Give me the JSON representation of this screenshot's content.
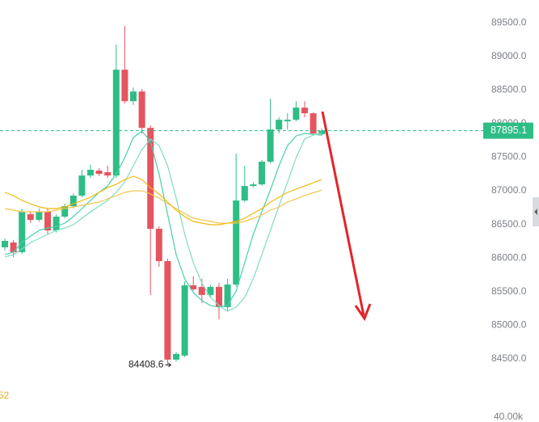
{
  "chart_data": {
    "type": "candlestick",
    "up_color": "#2ebd85",
    "down_color": "#e5545f",
    "ylim": [
      83800,
      89840
    ],
    "yticks": [
      {
        "value": 89500,
        "label": "89500.0"
      },
      {
        "value": 89000,
        "label": "89000.0"
      },
      {
        "value": 88500,
        "label": "88500.0"
      },
      {
        "value": 88000,
        "label": "88000.0"
      },
      {
        "value": 87500,
        "label": "87500.0"
      },
      {
        "value": 87000,
        "label": "87000.0"
      },
      {
        "value": 86500,
        "label": "86500.0"
      },
      {
        "value": 86000,
        "label": "86000.0"
      },
      {
        "value": 85500,
        "label": "85500.0"
      },
      {
        "value": 85000,
        "label": "85000.0"
      },
      {
        "value": 84500,
        "label": "84500.0"
      }
    ],
    "volume_tick": "40.00k",
    "legend_fragment": "52",
    "low_marker_index": 19,
    "last_price_color": "#2ebd85",
    "candles": [
      {
        "open": 86159,
        "high": 86291,
        "low": 86111,
        "close": 86255
      },
      {
        "open": 86231,
        "high": 86267,
        "low": 86014,
        "close": 86087
      },
      {
        "open": 86087,
        "high": 86736,
        "low": 86062,
        "close": 86688
      },
      {
        "open": 86652,
        "high": 86688,
        "low": 86520,
        "close": 86568
      },
      {
        "open": 86568,
        "high": 86736,
        "low": 86540,
        "close": 86688
      },
      {
        "open": 86688,
        "high": 86736,
        "low": 86351,
        "close": 86411
      },
      {
        "open": 86411,
        "high": 86650,
        "low": 86380,
        "close": 86616
      },
      {
        "open": 86616,
        "high": 86810,
        "low": 86590,
        "close": 86772
      },
      {
        "open": 86772,
        "high": 86960,
        "low": 86740,
        "close": 86928
      },
      {
        "open": 86928,
        "high": 87313,
        "low": 86904,
        "close": 87228
      },
      {
        "open": 87228,
        "high": 87385,
        "low": 87192,
        "close": 87313
      },
      {
        "open": 87301,
        "high": 87340,
        "low": 87220,
        "close": 87253
      },
      {
        "open": 87277,
        "high": 87373,
        "low": 87192,
        "close": 87228
      },
      {
        "open": 87228,
        "high": 89175,
        "low": 87192,
        "close": 88803
      },
      {
        "open": 88803,
        "high": 89452,
        "low": 88298,
        "close": 88334
      },
      {
        "open": 88334,
        "high": 88538,
        "low": 88274,
        "close": 88478
      },
      {
        "open": 88478,
        "high": 88514,
        "low": 87853,
        "close": 87937
      },
      {
        "open": 87937,
        "high": 87974,
        "low": 85450,
        "close": 86435
      },
      {
        "open": 86435,
        "high": 86471,
        "low": 85870,
        "close": 85954
      },
      {
        "open": 85954,
        "high": 85990,
        "low": 84408.6,
        "close": 84488
      },
      {
        "open": 84488,
        "high": 84600,
        "low": 84460,
        "close": 84572
      },
      {
        "open": 84548,
        "high": 85654,
        "low": 84524,
        "close": 85594
      },
      {
        "open": 85594,
        "high": 85726,
        "low": 85510,
        "close": 85534
      },
      {
        "open": 85570,
        "high": 85690,
        "low": 85330,
        "close": 85450
      },
      {
        "open": 85450,
        "high": 85600,
        "low": 85420,
        "close": 85570
      },
      {
        "open": 85570,
        "high": 85630,
        "low": 85089,
        "close": 85269
      },
      {
        "open": 85269,
        "high": 85690,
        "low": 85209,
        "close": 85606
      },
      {
        "open": 85606,
        "high": 87553,
        "low": 85570,
        "close": 86856
      },
      {
        "open": 86856,
        "high": 87373,
        "low": 86832,
        "close": 87072
      },
      {
        "open": 87072,
        "high": 87130,
        "low": 87050,
        "close": 87096
      },
      {
        "open": 87096,
        "high": 87460,
        "low": 87072,
        "close": 87433
      },
      {
        "open": 87433,
        "high": 88370,
        "low": 87409,
        "close": 87913
      },
      {
        "open": 87913,
        "high": 88094,
        "low": 87853,
        "close": 88058
      },
      {
        "open": 88034,
        "high": 88154,
        "low": 87913,
        "close": 88058
      },
      {
        "open": 88058,
        "high": 88334,
        "low": 88034,
        "close": 88238
      },
      {
        "open": 88238,
        "high": 88334,
        "low": 88094,
        "close": 88154
      },
      {
        "open": 88154,
        "high": 88170,
        "low": 87830,
        "close": 87853
      },
      {
        "open": 87841,
        "high": 87930,
        "low": 87820,
        "close": 87895.1
      }
    ],
    "series": [
      {
        "color": "#45cfae",
        "values": [
          86051,
          86087,
          86231,
          86327,
          86411,
          86447,
          86471,
          86519,
          86616,
          86736,
          86856,
          86976,
          87072,
          87253,
          87493,
          87794,
          87890,
          87734,
          87253,
          86652,
          86051,
          85690,
          85486,
          85366,
          85294,
          85269,
          85294,
          85510,
          85930,
          86351,
          86688,
          87012,
          87373,
          87673,
          87818,
          87854,
          87840,
          87830
        ]
      },
      {
        "color": "#7fdcc4",
        "values": [
          86015,
          86051,
          86135,
          86231,
          86291,
          86351,
          86411,
          86447,
          86495,
          86591,
          86688,
          86772,
          86856,
          86976,
          87132,
          87373,
          87613,
          87770,
          87673,
          87373,
          86892,
          86351,
          85930,
          85630,
          85414,
          85294,
          85209,
          85269,
          85414,
          85690,
          86051,
          86411,
          86772,
          87132,
          87493,
          87770,
          87830,
          87860
        ]
      },
      {
        "color": "#f0b90b",
        "values": [
          86976,
          86928,
          86856,
          86808,
          86760,
          86736,
          86736,
          86760,
          86808,
          86856,
          86904,
          86976,
          87048,
          87096,
          87168,
          87217,
          87168,
          87048,
          86952,
          86832,
          86712,
          86616,
          86544,
          86519,
          86495,
          86495,
          86519,
          86544,
          86591,
          86664,
          86736,
          86832,
          86904,
          86976,
          87024,
          87072,
          87120,
          87170
        ]
      },
      {
        "color": "#f3c54a",
        "values": [
          86736,
          86712,
          86688,
          86688,
          86688,
          86688,
          86712,
          86736,
          86760,
          86784,
          86808,
          86832,
          86880,
          86928,
          86976,
          87000,
          87000,
          86952,
          86892,
          86808,
          86736,
          86664,
          86591,
          86567,
          86544,
          86519,
          86519,
          86519,
          86544,
          86591,
          86640,
          86712,
          86760,
          86832,
          86880,
          86928,
          86970,
          87010
        ]
      }
    ]
  }
}
